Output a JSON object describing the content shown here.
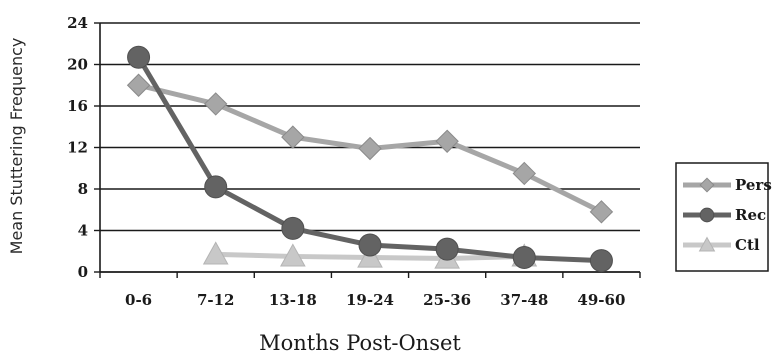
{
  "chart_data": {
    "type": "line",
    "title": "",
    "xlabel": "Months Post-Onset",
    "ylabel": "Mean Stuttering Frequency",
    "categories": [
      "0-6",
      "7-12",
      "13-18",
      "19-24",
      "25-36",
      "37-48",
      "49-60"
    ],
    "yticks": [
      "0",
      "4",
      "8",
      "12",
      "16",
      "20",
      "24"
    ],
    "ylim": [
      0,
      24
    ],
    "grid": true,
    "legend_position": "right",
    "series": [
      {
        "name": "Pers",
        "marker": "diamond",
        "color": "#a6a6a6",
        "values": [
          18.0,
          16.2,
          13.0,
          11.9,
          12.6,
          9.5,
          5.8
        ]
      },
      {
        "name": "Rec",
        "marker": "circle",
        "color": "#636363",
        "values": [
          20.7,
          8.2,
          4.2,
          2.6,
          2.2,
          1.4,
          1.1
        ]
      },
      {
        "name": "Ctl",
        "marker": "triangle",
        "color": "#c8c8c8",
        "values": [
          null,
          1.7,
          1.5,
          1.4,
          1.3,
          1.5,
          null
        ]
      }
    ]
  }
}
